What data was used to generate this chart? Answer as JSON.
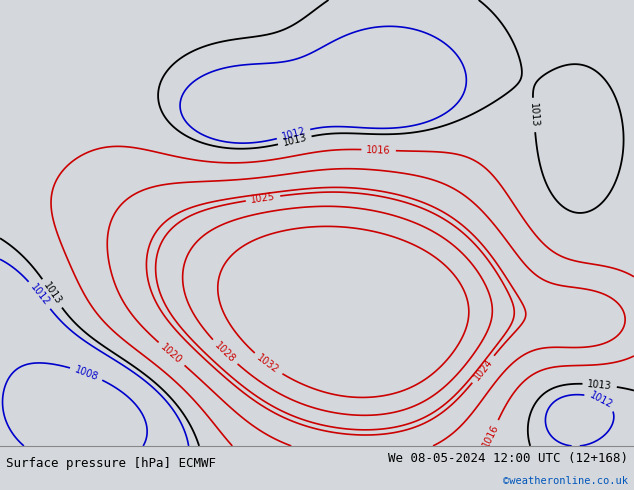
{
  "title_left": "Surface pressure [hPa] ECMWF",
  "title_right": "We 08-05-2024 12:00 UTC (12+168)",
  "copyright": "©weatheronline.co.uk",
  "background_color": "#d4d8dc",
  "land_color": "#c8e8b0",
  "ocean_color": "#d4d8dc",
  "contour_color_low": "#0000cc",
  "contour_color_high": "#cc0000",
  "contour_color_1013": "#000000",
  "label_fontsize": 7,
  "footer_fontsize": 9,
  "fig_width": 6.34,
  "fig_height": 4.9,
  "lon_min": 90,
  "lon_max": 185,
  "lat_min": -57,
  "lat_max": 12
}
